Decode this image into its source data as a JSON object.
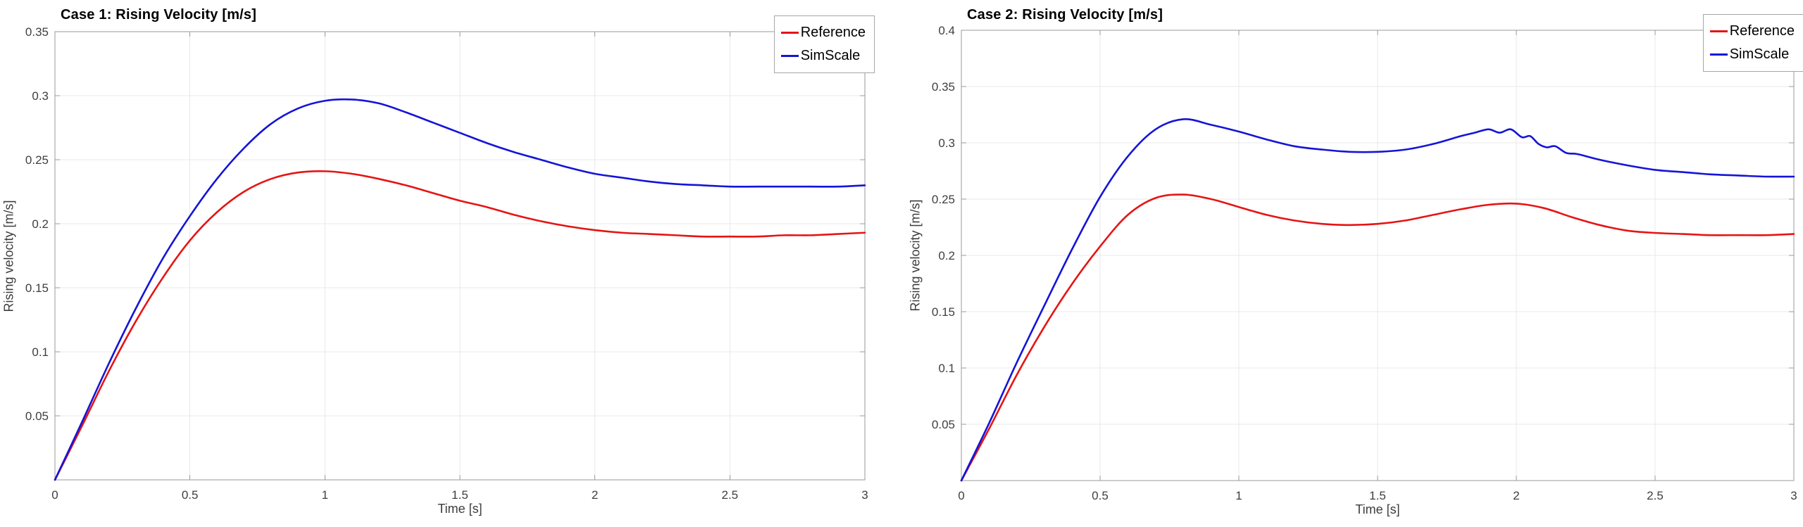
{
  "figure": {
    "background": "#ffffff"
  },
  "styles": {
    "grid_color": "#e9e9e9",
    "axis_color": "#9a9a9a",
    "tick_label_color": "#3f3f3f",
    "axis_label_color": "#3c3c3c",
    "title_color": "#000000",
    "reference_color": "#e61414",
    "simscale_color": "#1414d8"
  },
  "chart_data": [
    {
      "type": "line",
      "name": "case1",
      "title": "Case 1: Rising Velocity [m/s]",
      "xlabel": "Time [s]",
      "ylabel": "Rising velocity [m/s]",
      "xlim": [
        0,
        3
      ],
      "ylim": [
        0,
        0.35
      ],
      "xticks": [
        0,
        0.5,
        1,
        1.5,
        2,
        2.5,
        3
      ],
      "xtick_labels": [
        "0",
        "0.5",
        "1",
        "1.5",
        "2",
        "2.5",
        "3"
      ],
      "yticks": [
        0.05,
        0.1,
        0.15,
        0.2,
        0.25,
        0.3,
        0.35
      ],
      "ytick_labels": [
        "0.05",
        "0.1",
        "0.15",
        "0.2",
        "0.25",
        "0.3",
        "0.35"
      ],
      "grid": true,
      "legend_position": "northeast",
      "series": [
        {
          "name": "Reference",
          "color": "#e61414",
          "x": [
            0,
            0.1,
            0.2,
            0.3,
            0.4,
            0.5,
            0.6,
            0.7,
            0.8,
            0.9,
            1.0,
            1.1,
            1.2,
            1.3,
            1.4,
            1.5,
            1.6,
            1.7,
            1.8,
            1.9,
            2.0,
            2.1,
            2.2,
            2.3,
            2.4,
            2.5,
            2.6,
            2.7,
            2.8,
            2.9,
            3.0
          ],
          "y": [
            0,
            0.042,
            0.085,
            0.124,
            0.158,
            0.187,
            0.209,
            0.225,
            0.235,
            0.24,
            0.241,
            0.239,
            0.235,
            0.23,
            0.224,
            0.218,
            0.213,
            0.207,
            0.202,
            0.198,
            0.195,
            0.193,
            0.192,
            0.191,
            0.19,
            0.19,
            0.19,
            0.191,
            0.191,
            0.192,
            0.193
          ]
        },
        {
          "name": "SimScale",
          "color": "#1414d8",
          "x": [
            0,
            0.1,
            0.2,
            0.3,
            0.4,
            0.5,
            0.6,
            0.7,
            0.8,
            0.9,
            1.0,
            1.1,
            1.2,
            1.3,
            1.4,
            1.5,
            1.6,
            1.7,
            1.8,
            1.9,
            2.0,
            2.1,
            2.2,
            2.3,
            2.4,
            2.5,
            2.6,
            2.7,
            2.8,
            2.9,
            3.0
          ],
          "y": [
            0,
            0.045,
            0.091,
            0.134,
            0.173,
            0.206,
            0.235,
            0.259,
            0.278,
            0.29,
            0.296,
            0.297,
            0.294,
            0.287,
            0.279,
            0.271,
            0.263,
            0.256,
            0.25,
            0.244,
            0.239,
            0.236,
            0.233,
            0.231,
            0.23,
            0.229,
            0.229,
            0.229,
            0.229,
            0.229,
            0.23
          ]
        }
      ]
    },
    {
      "type": "line",
      "name": "case2",
      "title": "Case 2: Rising Velocity [m/s]",
      "xlabel": "Time [s]",
      "ylabel": "Rising velocity [m/s]",
      "xlim": [
        0,
        3
      ],
      "ylim": [
        0,
        0.4
      ],
      "xticks": [
        0,
        0.5,
        1,
        1.5,
        2,
        2.5,
        3
      ],
      "xtick_labels": [
        "0",
        "0.5",
        "1",
        "1.5",
        "2",
        "2.5",
        "3"
      ],
      "yticks": [
        0.05,
        0.1,
        0.15,
        0.2,
        0.25,
        0.3,
        0.35,
        0.4
      ],
      "ytick_labels": [
        "0.05",
        "0.1",
        "0.15",
        "0.2",
        "0.25",
        "0.3",
        "0.35",
        "0.4"
      ],
      "grid": true,
      "legend_position": "northeast",
      "series": [
        {
          "name": "Reference",
          "color": "#e61414",
          "x": [
            0,
            0.1,
            0.2,
            0.3,
            0.4,
            0.5,
            0.6,
            0.7,
            0.8,
            0.9,
            1.0,
            1.1,
            1.2,
            1.3,
            1.4,
            1.5,
            1.6,
            1.7,
            1.8,
            1.9,
            2.0,
            2.1,
            2.2,
            2.3,
            2.4,
            2.5,
            2.6,
            2.7,
            2.8,
            2.9,
            3.0
          ],
          "y": [
            0,
            0.046,
            0.094,
            0.137,
            0.175,
            0.208,
            0.236,
            0.251,
            0.254,
            0.25,
            0.243,
            0.236,
            0.231,
            0.228,
            0.227,
            0.228,
            0.231,
            0.236,
            0.241,
            0.245,
            0.246,
            0.242,
            0.234,
            0.227,
            0.222,
            0.22,
            0.219,
            0.218,
            0.218,
            0.218,
            0.219
          ]
        },
        {
          "name": "SimScale",
          "color": "#1414d8",
          "x": [
            0,
            0.1,
            0.2,
            0.3,
            0.4,
            0.5,
            0.6,
            0.7,
            0.8,
            0.9,
            1.0,
            1.1,
            1.2,
            1.3,
            1.4,
            1.5,
            1.6,
            1.7,
            1.8,
            1.85,
            1.9,
            1.94,
            1.98,
            2.02,
            2.05,
            2.08,
            2.11,
            2.14,
            2.18,
            2.22,
            2.3,
            2.4,
            2.5,
            2.6,
            2.7,
            2.8,
            2.9,
            3.0
          ],
          "y": [
            0,
            0.051,
            0.105,
            0.156,
            0.206,
            0.252,
            0.288,
            0.312,
            0.321,
            0.316,
            0.31,
            0.303,
            0.297,
            0.294,
            0.292,
            0.292,
            0.294,
            0.299,
            0.306,
            0.309,
            0.312,
            0.309,
            0.312,
            0.305,
            0.306,
            0.299,
            0.296,
            0.297,
            0.291,
            0.29,
            0.285,
            0.28,
            0.276,
            0.274,
            0.272,
            0.271,
            0.27,
            0.27
          ]
        }
      ]
    }
  ]
}
